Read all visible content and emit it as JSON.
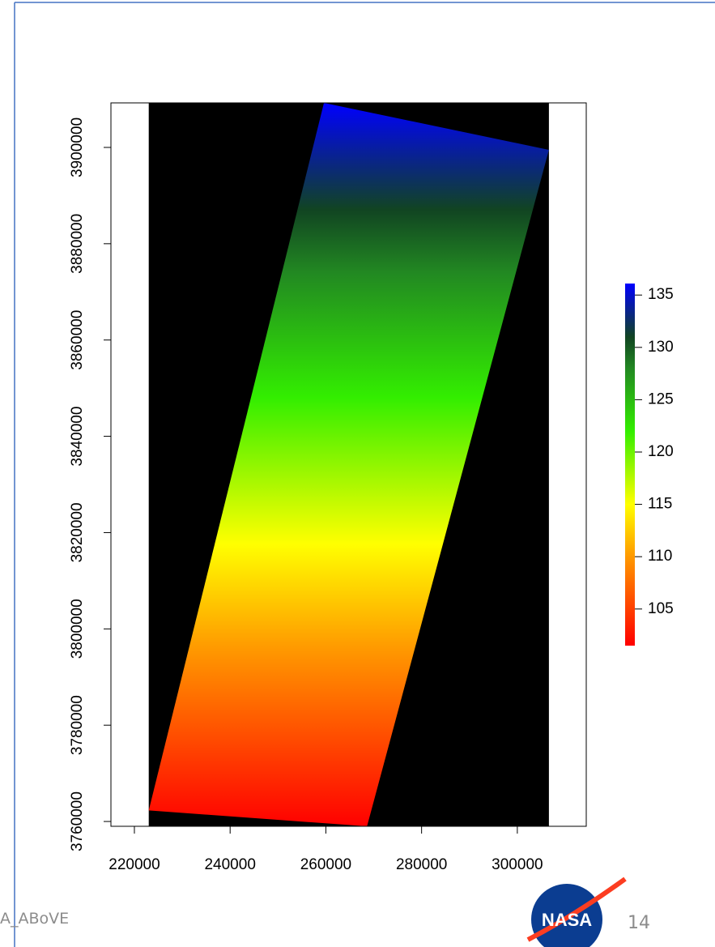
{
  "chart_data": {
    "type": "raster",
    "xlim": [
      215100,
      314400
    ],
    "ylim": [
      3759000,
      3909250
    ],
    "xticks": [
      220000,
      240000,
      260000,
      280000,
      300000
    ],
    "yticks": [
      3760000,
      3780000,
      3800000,
      3820000,
      3840000,
      3860000,
      3880000,
      3900000
    ],
    "raster_xlim": [
      223000,
      306600
    ],
    "footprint": {
      "x": [
        259600,
        306600,
        268600,
        223000
      ],
      "y": [
        3909250,
        3899500,
        3759000,
        3762300
      ]
    },
    "zlim": [
      101.5,
      136.1
    ],
    "zticks": [
      105,
      110,
      115,
      120,
      125,
      130,
      135
    ],
    "colormap": [
      {
        "value": 101.5,
        "color": "#ff0000"
      },
      {
        "value": 110,
        "color": "#ff9900"
      },
      {
        "value": 115,
        "color": "#ffff00"
      },
      {
        "value": 122,
        "color": "#33ee00"
      },
      {
        "value": 128,
        "color": "#228822"
      },
      {
        "value": 131,
        "color": "#114422"
      },
      {
        "value": 136.1,
        "color": "#0000ff"
      }
    ]
  },
  "footer": {
    "project": "A_ABoVE",
    "page": "14",
    "logo": "NASA"
  }
}
